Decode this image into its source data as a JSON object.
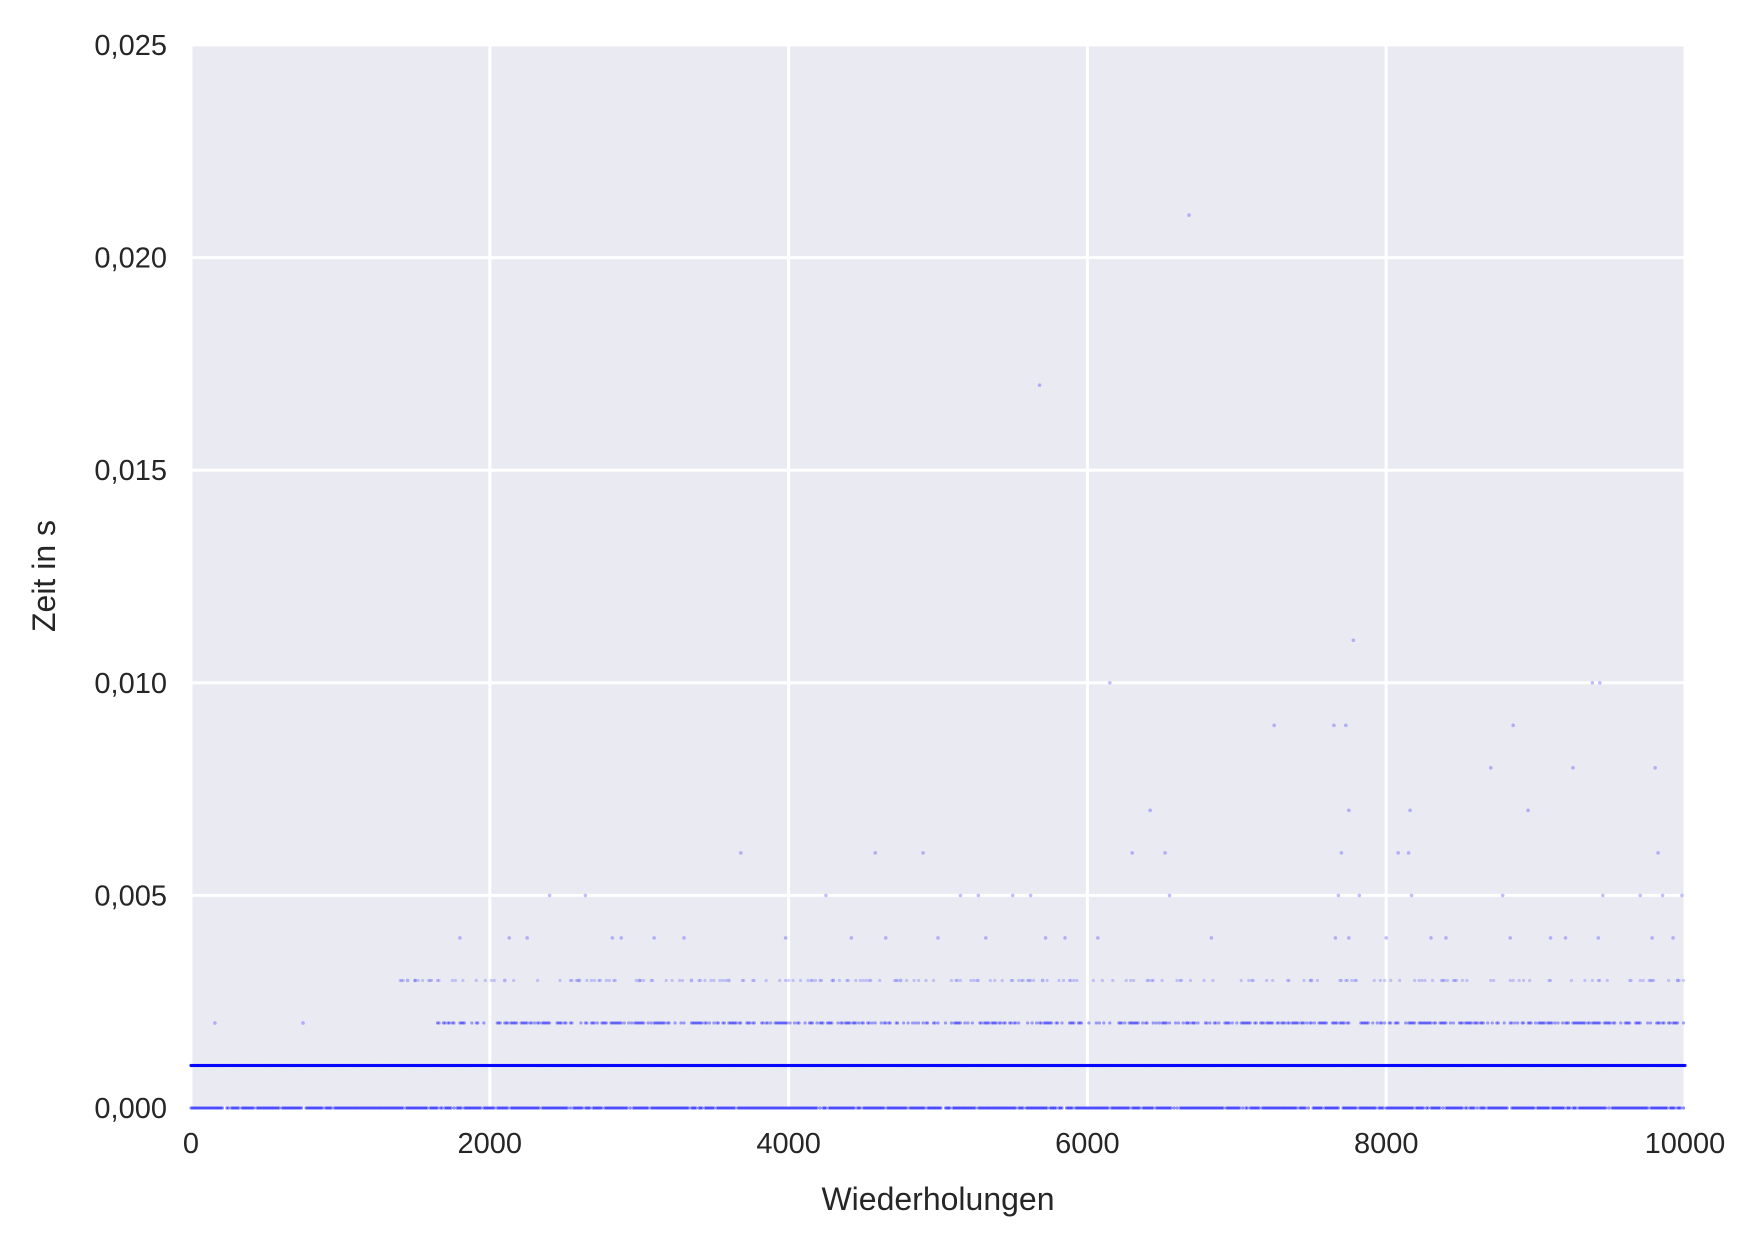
{
  "chart_data": {
    "type": "scatter",
    "xlabel": "Wiederholungen",
    "ylabel": "Zeit in s",
    "xlim": [
      0,
      10000
    ],
    "ylim": [
      0,
      0.025
    ],
    "x_ticks": [
      {
        "value": 0,
        "label": "0"
      },
      {
        "value": 2000,
        "label": "2000"
      },
      {
        "value": 4000,
        "label": "4000"
      },
      {
        "value": 6000,
        "label": "6000"
      },
      {
        "value": 8000,
        "label": "8000"
      },
      {
        "value": 10000,
        "label": "10000"
      }
    ],
    "y_ticks": [
      {
        "value": 0,
        "label": "0,000"
      },
      {
        "value": 0.005,
        "label": "0,005"
      },
      {
        "value": 0.01,
        "label": "0,010"
      },
      {
        "value": 0.015,
        "label": "0,015"
      },
      {
        "value": 0.02,
        "label": "0,020"
      },
      {
        "value": 0.025,
        "label": "0,025"
      }
    ],
    "grid": true,
    "colors": {
      "background": "#eaeaf2",
      "grid": "#ffffff",
      "points": "#0000ff"
    },
    "series": [
      {
        "points": [
          [
            160,
            0.002
          ],
          [
            750,
            0.002
          ],
          [
            1450,
            0.003
          ],
          [
            1500,
            0.003
          ],
          [
            1800,
            0.004
          ],
          [
            2130,
            0.004
          ],
          [
            2250,
            0.004
          ],
          [
            2100,
            0.003
          ],
          [
            2400,
            0.005
          ],
          [
            2640,
            0.005
          ],
          [
            2600,
            0.003
          ],
          [
            2820,
            0.004
          ],
          [
            2880,
            0.004
          ],
          [
            3000,
            0.003
          ],
          [
            3100,
            0.004
          ],
          [
            3300,
            0.004
          ],
          [
            3350,
            0.003
          ],
          [
            3680,
            0.006
          ],
          [
            3600,
            0.003
          ],
          [
            3980,
            0.004
          ],
          [
            4250,
            0.005
          ],
          [
            4300,
            0.003
          ],
          [
            4420,
            0.004
          ],
          [
            4580,
            0.006
          ],
          [
            4650,
            0.004
          ],
          [
            4750,
            0.003
          ],
          [
            4900,
            0.006
          ],
          [
            5000,
            0.004
          ],
          [
            5150,
            0.005
          ],
          [
            5270,
            0.005
          ],
          [
            5320,
            0.004
          ],
          [
            5500,
            0.005
          ],
          [
            5620,
            0.005
          ],
          [
            5680,
            0.017
          ],
          [
            5720,
            0.004
          ],
          [
            5850,
            0.004
          ],
          [
            5700,
            0.003
          ],
          [
            6070,
            0.004
          ],
          [
            6150,
            0.01
          ],
          [
            6300,
            0.006
          ],
          [
            6420,
            0.007
          ],
          [
            6520,
            0.006
          ],
          [
            6550,
            0.005
          ],
          [
            6680,
            0.021
          ],
          [
            6830,
            0.004
          ],
          [
            7250,
            0.009
          ],
          [
            7500,
            0.003
          ],
          [
            7650,
            0.009
          ],
          [
            7730,
            0.009
          ],
          [
            7750,
            0.007
          ],
          [
            7780,
            0.011
          ],
          [
            7700,
            0.006
          ],
          [
            7680,
            0.005
          ],
          [
            7820,
            0.005
          ],
          [
            7660,
            0.004
          ],
          [
            7750,
            0.004
          ],
          [
            8000,
            0.004
          ],
          [
            8080,
            0.006
          ],
          [
            8150,
            0.006
          ],
          [
            8160,
            0.007
          ],
          [
            8170,
            0.005
          ],
          [
            8300,
            0.004
          ],
          [
            8400,
            0.004
          ],
          [
            8700,
            0.008
          ],
          [
            8780,
            0.005
          ],
          [
            8850,
            0.009
          ],
          [
            8830,
            0.004
          ],
          [
            8950,
            0.007
          ],
          [
            9100,
            0.004
          ],
          [
            9200,
            0.004
          ],
          [
            9250,
            0.008
          ],
          [
            9380,
            0.01
          ],
          [
            9430,
            0.01
          ],
          [
            9450,
            0.005
          ],
          [
            9420,
            0.004
          ],
          [
            9700,
            0.005
          ],
          [
            9800,
            0.008
          ],
          [
            9820,
            0.006
          ],
          [
            9780,
            0.004
          ],
          [
            9850,
            0.005
          ],
          [
            9920,
            0.004
          ],
          [
            9980,
            0.005
          ],
          [
            9950,
            0.003
          ]
        ],
        "base_levels": [
          0.0,
          0.001,
          0.002,
          0.003
        ]
      }
    ]
  }
}
